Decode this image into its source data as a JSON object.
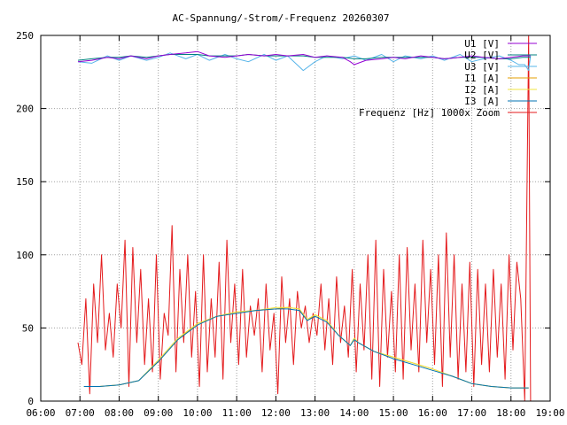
{
  "chart_data": {
    "type": "line",
    "title": "AC-Spannung/-Strom/-Frequenz 20260307",
    "xlabel": "",
    "ylabel": "",
    "xlim": [
      6,
      19
    ],
    "ylim": [
      0,
      250
    ],
    "x_ticks": [
      {
        "value": 6,
        "label": "06:00"
      },
      {
        "value": 7,
        "label": "07:00"
      },
      {
        "value": 8,
        "label": "08:00"
      },
      {
        "value": 9,
        "label": "09:00"
      },
      {
        "value": 10,
        "label": "10:00"
      },
      {
        "value": 11,
        "label": "11:00"
      },
      {
        "value": 12,
        "label": "12:00"
      },
      {
        "value": 13,
        "label": "13:00"
      },
      {
        "value": 14,
        "label": "14:00"
      },
      {
        "value": 15,
        "label": "15:00"
      },
      {
        "value": 16,
        "label": "16:00"
      },
      {
        "value": 17,
        "label": "17:00"
      },
      {
        "value": 18,
        "label": "18:00"
      },
      {
        "value": 19,
        "label": "19:00"
      }
    ],
    "y_ticks": [
      {
        "value": 0,
        "label": "0"
      },
      {
        "value": 50,
        "label": "50"
      },
      {
        "value": 100,
        "label": "100"
      },
      {
        "value": 150,
        "label": "150"
      },
      {
        "value": 200,
        "label": "200"
      },
      {
        "value": 250,
        "label": "250"
      }
    ],
    "grid": true,
    "legend_position": "top-right",
    "series": [
      {
        "name": "U1 [V]",
        "color": "#9400d3",
        "x": [
          6.95,
          7.3,
          7.7,
          8.0,
          8.3,
          8.7,
          9.0,
          9.3,
          9.7,
          10.0,
          10.3,
          10.7,
          11.0,
          11.3,
          11.7,
          12.0,
          12.3,
          12.7,
          13.0,
          13.3,
          13.7,
          13.9,
          14.0,
          14.3,
          14.7,
          15.0,
          15.3,
          15.7,
          16.0,
          16.3,
          16.7,
          17.0,
          17.3,
          17.7,
          18.0,
          18.3,
          18.5
        ],
        "values": [
          232,
          233,
          235,
          234,
          236,
          234,
          236,
          237,
          238,
          239,
          236,
          235,
          236,
          237,
          236,
          237,
          236,
          237,
          235,
          236,
          235,
          232,
          230,
          233,
          234,
          235,
          234,
          236,
          235,
          234,
          235,
          236,
          235,
          234,
          235,
          236,
          236
        ]
      },
      {
        "name": "U2 [V]",
        "color": "#008080",
        "x": [
          6.95,
          7.3,
          7.7,
          8.0,
          8.3,
          8.7,
          9.0,
          9.3,
          9.7,
          10.0,
          10.3,
          10.7,
          11.0,
          11.3,
          11.7,
          12.0,
          12.3,
          12.7,
          13.0,
          13.3,
          13.7,
          14.0,
          14.3,
          14.7,
          15.0,
          15.3,
          15.7,
          16.0,
          16.3,
          16.7,
          17.0,
          17.3,
          17.7,
          18.0,
          18.3,
          18.5
        ],
        "values": [
          233,
          234,
          235,
          235,
          236,
          235,
          236,
          237,
          237,
          237,
          236,
          236,
          236,
          237,
          236,
          236,
          236,
          236,
          235,
          235,
          235,
          234,
          234,
          235,
          235,
          235,
          235,
          235,
          234,
          235,
          235,
          235,
          234,
          234,
          235,
          235
        ]
      },
      {
        "name": "U3 [V]",
        "color": "#56b4e9",
        "x": [
          6.95,
          7.3,
          7.7,
          8.0,
          8.3,
          8.7,
          9.0,
          9.3,
          9.7,
          10.0,
          10.3,
          10.7,
          11.0,
          11.3,
          11.7,
          12.0,
          12.3,
          12.7,
          13.0,
          13.3,
          13.7,
          14.0,
          14.3,
          14.7,
          15.0,
          15.3,
          15.7,
          16.0,
          16.3,
          16.7,
          17.0,
          17.3,
          17.7,
          18.0,
          18.2,
          18.35,
          18.45,
          18.5
        ],
        "values": [
          232,
          231,
          236,
          233,
          236,
          233,
          235,
          238,
          234,
          237,
          233,
          237,
          234,
          232,
          237,
          233,
          236,
          226,
          232,
          236,
          234,
          236,
          233,
          237,
          232,
          236,
          234,
          236,
          233,
          237,
          232,
          234,
          236,
          233,
          230,
          230,
          226,
          236
        ]
      },
      {
        "name": "I1 [A]",
        "color": "#e69f00",
        "x": [
          7.1,
          7.5,
          8.0,
          8.5,
          9.0,
          9.5,
          10.0,
          10.5,
          11.0,
          11.5,
          12.0,
          12.3,
          12.6,
          12.8,
          13.0,
          13.3,
          13.6,
          13.9,
          14.0,
          14.1,
          14.5,
          15.0,
          15.5,
          16.0,
          16.5,
          17.0,
          17.5,
          18.0,
          18.3,
          18.45
        ],
        "values": [
          10,
          10,
          11,
          14,
          27,
          42,
          53,
          58,
          61,
          62,
          63,
          64,
          63,
          55,
          59,
          55,
          45,
          38,
          43,
          40,
          34,
          30,
          26,
          22,
          17,
          12,
          10,
          9,
          9,
          9
        ]
      },
      {
        "name": "I2 [A]",
        "color": "#f0e442",
        "x": [
          7.1,
          7.5,
          8.0,
          8.5,
          9.0,
          9.5,
          10.0,
          10.5,
          11.0,
          11.5,
          12.0,
          12.3,
          12.6,
          12.8,
          13.0,
          13.3,
          13.6,
          13.9,
          14.0,
          14.1,
          14.5,
          15.0,
          15.5,
          16.0,
          16.5,
          17.0,
          17.5,
          18.0,
          18.3,
          18.45
        ],
        "values": [
          10,
          10,
          11,
          14,
          28,
          43,
          53,
          58,
          61,
          62,
          64,
          64,
          63,
          56,
          59,
          55,
          45,
          38,
          43,
          40,
          34,
          30,
          26,
          22,
          17,
          12,
          10,
          9,
          9,
          9
        ]
      },
      {
        "name": "I3 [A]",
        "color": "#0072b2",
        "x": [
          7.1,
          7.5,
          8.0,
          8.5,
          9.0,
          9.5,
          10.0,
          10.5,
          11.0,
          11.5,
          12.0,
          12.3,
          12.6,
          12.8,
          13.0,
          13.3,
          13.6,
          13.9,
          14.0,
          14.1,
          14.5,
          15.0,
          15.5,
          16.0,
          16.5,
          17.0,
          17.5,
          18.0,
          18.3,
          18.45
        ],
        "values": [
          10,
          10,
          11,
          14,
          27,
          42,
          52,
          58,
          60,
          62,
          63,
          63,
          62,
          55,
          58,
          54,
          45,
          38,
          42,
          40,
          34,
          29,
          25,
          21,
          17,
          12,
          10,
          9,
          9,
          9
        ]
      },
      {
        "name": "Frequenz [Hz] 1000x Zoom",
        "color": "#e41a1c",
        "x": [
          6.95,
          7.05,
          7.15,
          7.25,
          7.35,
          7.45,
          7.55,
          7.65,
          7.75,
          7.85,
          7.95,
          8.05,
          8.15,
          8.25,
          8.35,
          8.45,
          8.55,
          8.65,
          8.75,
          8.85,
          8.95,
          9.05,
          9.15,
          9.25,
          9.35,
          9.45,
          9.55,
          9.65,
          9.75,
          9.85,
          9.95,
          10.05,
          10.15,
          10.25,
          10.35,
          10.45,
          10.55,
          10.65,
          10.75,
          10.85,
          10.95,
          11.05,
          11.15,
          11.25,
          11.35,
          11.45,
          11.55,
          11.65,
          11.75,
          11.85,
          11.95,
          12.05,
          12.15,
          12.25,
          12.35,
          12.45,
          12.55,
          12.65,
          12.75,
          12.85,
          12.95,
          13.05,
          13.15,
          13.25,
          13.35,
          13.45,
          13.55,
          13.65,
          13.75,
          13.85,
          13.95,
          14.05,
          14.15,
          14.25,
          14.35,
          14.45,
          14.55,
          14.65,
          14.75,
          14.85,
          14.95,
          15.05,
          15.15,
          15.25,
          15.35,
          15.45,
          15.55,
          15.65,
          15.75,
          15.85,
          15.95,
          16.05,
          16.15,
          16.25,
          16.35,
          16.45,
          16.55,
          16.65,
          16.75,
          16.85,
          16.95,
          17.05,
          17.15,
          17.25,
          17.35,
          17.45,
          17.55,
          17.65,
          17.75,
          17.85,
          17.95,
          18.05,
          18.15,
          18.25,
          18.35,
          18.45,
          18.5
        ],
        "values": [
          40,
          25,
          70,
          5,
          80,
          40,
          100,
          35,
          60,
          30,
          80,
          50,
          110,
          10,
          105,
          40,
          90,
          25,
          70,
          20,
          100,
          15,
          60,
          45,
          120,
          20,
          90,
          40,
          100,
          30,
          75,
          10,
          100,
          20,
          70,
          30,
          95,
          15,
          110,
          40,
          80,
          25,
          90,
          30,
          65,
          45,
          70,
          20,
          80,
          35,
          60,
          5,
          85,
          40,
          70,
          25,
          75,
          50,
          65,
          40,
          60,
          45,
          80,
          35,
          70,
          25,
          85,
          40,
          65,
          30,
          90,
          20,
          80,
          35,
          100,
          15,
          110,
          10,
          90,
          30,
          75,
          20,
          100,
          15,
          105,
          35,
          80,
          20,
          110,
          40,
          90,
          25,
          100,
          10,
          115,
          30,
          100,
          15,
          80,
          20,
          95,
          10,
          90,
          25,
          80,
          20,
          90,
          30,
          80,
          15,
          100,
          35,
          95,
          70,
          0,
          250,
          0
        ]
      }
    ]
  }
}
